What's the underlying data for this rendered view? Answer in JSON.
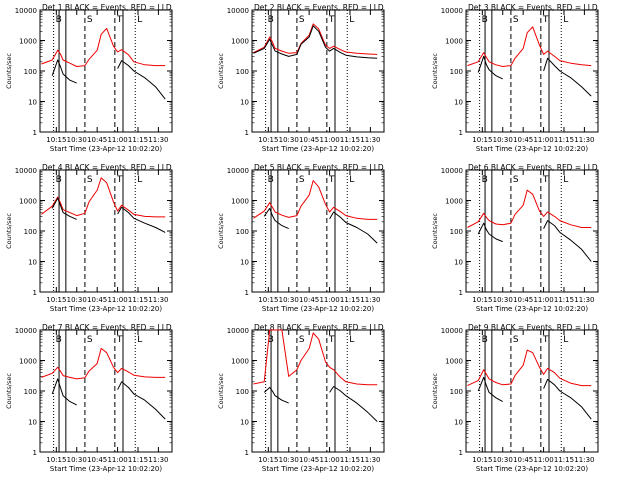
{
  "figure": {
    "panel_title_suffix": "BLACK = Events, RED = LLD",
    "ylabel": "Counts/sec",
    "xlabel": "Start Time (23-Apr-12 10:02:20)",
    "x_ticks": [
      "10:15",
      "10:30",
      "10:45",
      "11:00",
      "11:15",
      "11:30"
    ],
    "y_ticks": [
      "1",
      "10",
      "100",
      "1000",
      "10000"
    ],
    "region_markers": [
      "B",
      "S",
      "T",
      "L"
    ],
    "colors": {
      "events": "#000000",
      "lld": "#ee0000"
    }
  },
  "chart_data": [
    {
      "type": "line",
      "title": "Det 1",
      "xlabel": "Start Time (23-Apr-12 10:02:20)",
      "ylabel": "Counts/sec",
      "yscale": "log",
      "ylim": [
        1,
        10000
      ],
      "xlim": [
        "10:03",
        "11:40"
      ],
      "x": [
        "10:04",
        "10:12",
        "10:16",
        "10:18",
        "10:20",
        "10:25",
        "10:30",
        "10:36",
        "10:39",
        "10:45",
        "10:48",
        "10:52",
        "10:57",
        "11:00",
        "11:03",
        "11:08",
        "11:12",
        "11:20",
        "11:28",
        "11:35"
      ],
      "series": [
        {
          "name": "RED = LLD",
          "values": [
            170,
            230,
            480,
            360,
            230,
            180,
            140,
            150,
            240,
            480,
            1600,
            2500,
            650,
            420,
            500,
            340,
            200,
            160,
            150,
            150
          ]
        },
        {
          "name": "BLACK = Events",
          "values": [
            null,
            70,
            230,
            140,
            80,
            50,
            40,
            null,
            null,
            null,
            null,
            null,
            null,
            120,
            220,
            150,
            100,
            60,
            30,
            12
          ]
        }
      ],
      "markers": {
        "solid": [
          "10:17",
          "10:22",
          "11:04"
        ],
        "dashed": [
          "10:36",
          "10:58"
        ],
        "dotted": [
          "10:13",
          "11:13"
        ]
      }
    },
    {
      "type": "line",
      "title": "Det 2",
      "xlabel": "Start Time (23-Apr-12 10:02:20)",
      "ylabel": "Counts/sec",
      "yscale": "log",
      "ylim": [
        1,
        10000
      ],
      "xlim": [
        "10:03",
        "11:40"
      ],
      "x": [
        "10:04",
        "10:12",
        "10:16",
        "10:18",
        "10:20",
        "10:25",
        "10:30",
        "10:36",
        "10:39",
        "10:45",
        "10:48",
        "10:52",
        "10:57",
        "11:00",
        "11:03",
        "11:08",
        "11:12",
        "11:20",
        "11:28",
        "11:35"
      ],
      "series": [
        {
          "name": "RED = LLD",
          "values": [
            400,
            600,
            1300,
            900,
            550,
            450,
            380,
            400,
            800,
            1500,
            3500,
            2400,
            700,
            550,
            650,
            500,
            420,
            380,
            360,
            350
          ]
        },
        {
          "name": "BLACK = Events",
          "values": [
            380,
            550,
            1100,
            700,
            450,
            360,
            300,
            350,
            750,
            1300,
            3000,
            2000,
            600,
            450,
            550,
            400,
            330,
            290,
            270,
            260
          ]
        }
      ],
      "markers": {
        "solid": [
          "10:17",
          "10:22",
          "11:04"
        ],
        "dashed": [
          "10:36",
          "10:58"
        ],
        "dotted": [
          "10:13",
          "11:13"
        ]
      }
    },
    {
      "type": "line",
      "title": "Det 3",
      "xlabel": "Start Time (23-Apr-12 10:02:20)",
      "ylabel": "Counts/sec",
      "yscale": "log",
      "ylim": [
        1,
        10000
      ],
      "xlim": [
        "10:03",
        "11:40"
      ],
      "x": [
        "10:04",
        "10:12",
        "10:16",
        "10:18",
        "10:20",
        "10:25",
        "10:30",
        "10:36",
        "10:39",
        "10:45",
        "10:48",
        "10:52",
        "10:57",
        "11:00",
        "11:03",
        "11:08",
        "11:12",
        "11:20",
        "11:28",
        "11:35"
      ],
      "series": [
        {
          "name": "RED = LLD",
          "values": [
            150,
            200,
            400,
            280,
            200,
            160,
            140,
            150,
            260,
            550,
            1800,
            2800,
            700,
            350,
            450,
            300,
            220,
            180,
            160,
            150
          ]
        },
        {
          "name": "BLACK = Events",
          "values": [
            null,
            90,
            300,
            160,
            110,
            70,
            55,
            null,
            null,
            null,
            null,
            null,
            null,
            100,
            260,
            150,
            100,
            60,
            30,
            15
          ]
        }
      ],
      "markers": {
        "solid": [
          "10:17",
          "10:22",
          "11:04"
        ],
        "dashed": [
          "10:36",
          "10:58"
        ],
        "dotted": [
          "10:13",
          "11:13"
        ]
      }
    },
    {
      "type": "line",
      "title": "Det 4",
      "xlabel": "Start Time (23-Apr-12 10:02:20)",
      "ylabel": "Counts/sec",
      "yscale": "log",
      "ylim": [
        1,
        10000
      ],
      "xlim": [
        "10:03",
        "11:40"
      ],
      "x": [
        "10:04",
        "10:12",
        "10:16",
        "10:18",
        "10:20",
        "10:25",
        "10:30",
        "10:36",
        "10:39",
        "10:45",
        "10:48",
        "10:52",
        "10:57",
        "11:00",
        "11:03",
        "11:08",
        "11:12",
        "11:20",
        "11:28",
        "11:35"
      ],
      "series": [
        {
          "name": "RED = LLD",
          "values": [
            350,
            650,
            1300,
            850,
            500,
            400,
            320,
            380,
            900,
            2200,
            5500,
            3800,
            900,
            450,
            700,
            480,
            350,
            300,
            290,
            290
          ]
        },
        {
          "name": "BLACK = Events",
          "values": [
            null,
            550,
            1200,
            700,
            400,
            300,
            240,
            null,
            null,
            null,
            null,
            null,
            null,
            360,
            600,
            400,
            260,
            180,
            130,
            90
          ]
        }
      ],
      "markers": {
        "solid": [
          "10:17",
          "10:22",
          "11:04"
        ],
        "dashed": [
          "10:36",
          "10:58"
        ],
        "dotted": [
          "10:13",
          "11:13"
        ]
      }
    },
    {
      "type": "line",
      "title": "Det 5",
      "xlabel": "Start Time (23-Apr-12 10:02:20)",
      "ylabel": "Counts/sec",
      "yscale": "log",
      "ylim": [
        1,
        10000
      ],
      "xlim": [
        "10:03",
        "11:40"
      ],
      "x": [
        "10:04",
        "10:12",
        "10:16",
        "10:18",
        "10:20",
        "10:25",
        "10:30",
        "10:36",
        "10:39",
        "10:45",
        "10:48",
        "10:52",
        "10:57",
        "11:00",
        "11:03",
        "11:08",
        "11:12",
        "11:20",
        "11:28",
        "11:35"
      ],
      "series": [
        {
          "name": "RED = LLD",
          "values": [
            260,
            450,
            850,
            600,
            420,
            330,
            280,
            320,
            650,
            1500,
            4500,
            2800,
            750,
            420,
            600,
            430,
            320,
            260,
            240,
            240
          ]
        },
        {
          "name": "BLACK = Events",
          "values": [
            null,
            300,
            550,
            320,
            220,
            150,
            120,
            null,
            null,
            null,
            null,
            null,
            null,
            250,
            420,
            280,
            190,
            130,
            80,
            40
          ]
        }
      ],
      "markers": {
        "solid": [
          "10:17",
          "10:22",
          "11:04"
        ],
        "dashed": [
          "10:36",
          "10:58"
        ],
        "dotted": [
          "10:13",
          "11:13"
        ]
      }
    },
    {
      "type": "line",
      "title": "Det 6",
      "xlabel": "Start Time (23-Apr-12 10:02:20)",
      "ylabel": "Counts/sec",
      "yscale": "log",
      "ylim": [
        1,
        10000
      ],
      "xlim": [
        "10:03",
        "11:40"
      ],
      "x": [
        "10:04",
        "10:12",
        "10:16",
        "10:18",
        "10:20",
        "10:25",
        "10:30",
        "10:36",
        "10:39",
        "10:45",
        "10:48",
        "10:52",
        "10:57",
        "11:00",
        "11:03",
        "11:08",
        "11:12",
        "11:20",
        "11:28",
        "11:35"
      ],
      "series": [
        {
          "name": "RED = LLD",
          "values": [
            130,
            200,
            380,
            280,
            220,
            170,
            160,
            180,
            350,
            700,
            2200,
            1600,
            450,
            300,
            420,
            300,
            220,
            160,
            130,
            130
          ]
        },
        {
          "name": "BLACK = Events",
          "values": [
            null,
            80,
            180,
            110,
            80,
            55,
            45,
            null,
            null,
            null,
            null,
            null,
            null,
            120,
            220,
            150,
            90,
            50,
            25,
            10
          ]
        }
      ],
      "markers": {
        "solid": [
          "10:17",
          "10:22",
          "11:04"
        ],
        "dashed": [
          "10:36",
          "10:58"
        ],
        "dotted": [
          "10:13",
          "11:13"
        ]
      }
    },
    {
      "type": "line",
      "title": "Det 7",
      "xlabel": "Start Time (23-Apr-12 10:02:20)",
      "ylabel": "Counts/sec",
      "yscale": "log",
      "ylim": [
        1,
        10000
      ],
      "xlim": [
        "10:03",
        "11:40"
      ],
      "x": [
        "10:04",
        "10:12",
        "10:16",
        "10:18",
        "10:20",
        "10:25",
        "10:30",
        "10:36",
        "10:39",
        "10:45",
        "10:48",
        "10:52",
        "10:57",
        "11:00",
        "11:03",
        "11:08",
        "11:12",
        "11:20",
        "11:28",
        "11:35"
      ],
      "series": [
        {
          "name": "RED = LLD",
          "values": [
            280,
            380,
            600,
            450,
            320,
            280,
            250,
            270,
            450,
            800,
            2500,
            1800,
            600,
            400,
            550,
            420,
            330,
            290,
            280,
            280
          ]
        },
        {
          "name": "BLACK = Events",
          "values": [
            null,
            80,
            250,
            130,
            70,
            45,
            35,
            null,
            null,
            null,
            null,
            null,
            null,
            110,
            200,
            130,
            80,
            50,
            25,
            12
          ]
        }
      ],
      "markers": {
        "solid": [
          "10:17",
          "10:22",
          "11:04"
        ],
        "dashed": [
          "10:36",
          "10:58"
        ],
        "dotted": [
          "10:13",
          "11:13"
        ]
      }
    },
    {
      "type": "line",
      "title": "Det 8",
      "xlabel": "Start Time (23-Apr-12 10:02:20)",
      "ylabel": "Counts/sec",
      "yscale": "log",
      "ylim": [
        1,
        10000
      ],
      "xlim": [
        "10:03",
        "11:40"
      ],
      "x": [
        "10:04",
        "10:12",
        "10:16",
        "10:18",
        "10:20",
        "10:25",
        "10:30",
        "10:36",
        "10:39",
        "10:45",
        "10:48",
        "10:52",
        "10:57",
        "11:00",
        "11:03",
        "11:08",
        "11:12",
        "11:20",
        "11:28",
        "11:35"
      ],
      "series": [
        {
          "name": "RED = LLD",
          "values": [
            170,
            200,
            10000,
            10000,
            10000,
            10000,
            300,
            500,
            1000,
            2500,
            8000,
            5000,
            900,
            600,
            500,
            280,
            200,
            170,
            160,
            160
          ]
        },
        {
          "name": "BLACK = Events",
          "values": [
            null,
            90,
            130,
            100,
            70,
            50,
            40,
            null,
            null,
            null,
            null,
            null,
            null,
            90,
            140,
            100,
            70,
            40,
            20,
            10
          ]
        }
      ],
      "markers": {
        "solid": [
          "10:17",
          "10:22",
          "11:04"
        ],
        "dashed": [
          "10:36",
          "10:58"
        ],
        "dotted": [
          "10:13",
          "11:13"
        ]
      }
    },
    {
      "type": "line",
      "title": "Det 9",
      "xlabel": "Start Time (23-Apr-12 10:02:20)",
      "ylabel": "Counts/sec",
      "yscale": "log",
      "ylim": [
        1,
        10000
      ],
      "xlim": [
        "10:03",
        "11:40"
      ],
      "x": [
        "10:04",
        "10:12",
        "10:16",
        "10:18",
        "10:20",
        "10:25",
        "10:30",
        "10:36",
        "10:39",
        "10:45",
        "10:48",
        "10:52",
        "10:57",
        "11:00",
        "11:03",
        "11:08",
        "11:12",
        "11:20",
        "11:28",
        "11:35"
      ],
      "series": [
        {
          "name": "RED = LLD",
          "values": [
            150,
            220,
            500,
            350,
            250,
            190,
            160,
            170,
            320,
            700,
            2200,
            1800,
            600,
            350,
            550,
            400,
            260,
            180,
            150,
            150
          ]
        },
        {
          "name": "BLACK = Events",
          "values": [
            null,
            100,
            280,
            150,
            90,
            60,
            45,
            null,
            null,
            null,
            null,
            null,
            null,
            120,
            240,
            160,
            100,
            60,
            30,
            12
          ]
        }
      ],
      "markers": {
        "solid": [
          "10:17",
          "10:22",
          "11:04"
        ],
        "dashed": [
          "10:36",
          "10:58"
        ],
        "dotted": [
          "10:13",
          "11:13"
        ]
      }
    }
  ]
}
